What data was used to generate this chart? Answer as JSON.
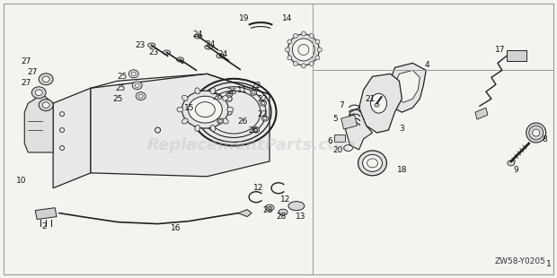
{
  "background_color": "#f5f3f0",
  "border_color": "#888888",
  "diagram_code": "ZW58-Y0205",
  "watermark": "ReplacementParts.com",
  "watermark_color": "#bbbbbb",
  "watermark_alpha": 0.35,
  "fig_width": 6.2,
  "fig_height": 3.1,
  "dpi": 100,
  "line_color": "#222222",
  "fill_color": "#eeeeee",
  "label_fontsize": 6.5,
  "label_color": "#111111"
}
